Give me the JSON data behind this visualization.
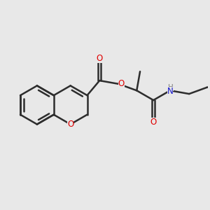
{
  "background_color": "#e8e8e8",
  "bond_color": "#2d2d2d",
  "oxygen_color": "#e00000",
  "nitrogen_color": "#1414cc",
  "hydrogen_color": "#808080",
  "bond_width": 1.8,
  "dbo": 0.018,
  "figsize": [
    3.0,
    3.0
  ],
  "dpi": 100,
  "xlim": [
    -1.1,
    1.25
  ],
  "ylim": [
    -0.65,
    0.65
  ]
}
